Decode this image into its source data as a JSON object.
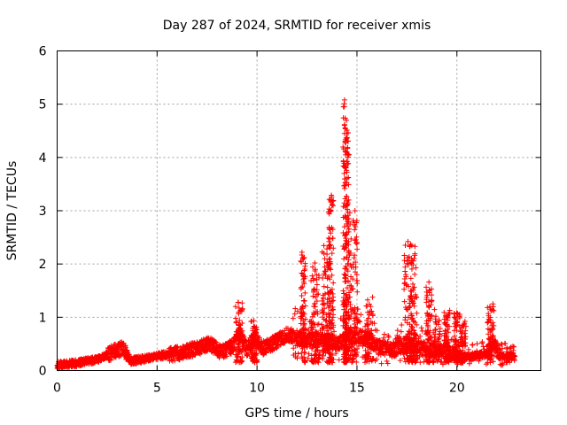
{
  "chart_data": {
    "type": "scatter",
    "title": "Day 287 of 2024, SRMTID for receiver xmis",
    "xlabel": "GPS time / hours",
    "ylabel": "SRMTID / TECUs",
    "xlim": [
      0,
      24.2
    ],
    "ylim": [
      0,
      6
    ],
    "xticks": [
      0,
      5,
      10,
      15,
      20
    ],
    "yticks": [
      0,
      1,
      2,
      3,
      4,
      5,
      6
    ],
    "grid": true,
    "marker": "+",
    "series_color": "#ff0000",
    "x_end": 22.9,
    "baseline": [
      [
        0,
        0.1
      ],
      [
        1,
        0.14
      ],
      [
        2,
        0.2
      ],
      [
        2.8,
        0.35
      ],
      [
        3.3,
        0.42
      ],
      [
        3.7,
        0.18
      ],
      [
        4.4,
        0.22
      ],
      [
        5.2,
        0.28
      ],
      [
        6.2,
        0.33
      ],
      [
        7.0,
        0.42
      ],
      [
        7.6,
        0.5
      ],
      [
        8.2,
        0.35
      ],
      [
        8.8,
        0.45
      ],
      [
        9.1,
        0.75
      ],
      [
        9.5,
        0.4
      ],
      [
        9.9,
        0.62
      ],
      [
        10.3,
        0.42
      ],
      [
        11.0,
        0.55
      ],
      [
        11.5,
        0.68
      ],
      [
        12.0,
        0.62
      ],
      [
        12.4,
        0.55
      ],
      [
        13.0,
        0.6
      ],
      [
        13.6,
        0.55
      ],
      [
        14.0,
        0.5
      ],
      [
        14.5,
        0.6
      ],
      [
        15.0,
        0.65
      ],
      [
        15.5,
        0.6
      ],
      [
        16.0,
        0.45
      ],
      [
        16.8,
        0.38
      ],
      [
        17.5,
        0.5
      ],
      [
        18.0,
        0.45
      ],
      [
        18.5,
        0.4
      ],
      [
        19.0,
        0.38
      ],
      [
        19.5,
        0.35
      ],
      [
        20.0,
        0.28
      ],
      [
        20.5,
        0.25
      ],
      [
        21.0,
        0.27
      ],
      [
        21.5,
        0.3
      ],
      [
        21.8,
        0.55
      ],
      [
        22.2,
        0.28
      ],
      [
        22.9,
        0.25
      ]
    ],
    "bursts": [
      {
        "x": 9.1,
        "w": 0.18,
        "max": 1.28
      },
      {
        "x": 9.85,
        "w": 0.15,
        "max": 0.95
      },
      {
        "x": 12.3,
        "w": 0.12,
        "max": 2.22
      },
      {
        "x": 12.9,
        "w": 0.2,
        "max": 2.05
      },
      {
        "x": 13.45,
        "w": 0.2,
        "max": 2.55
      },
      {
        "x": 13.7,
        "w": 0.12,
        "max": 3.28
      },
      {
        "x": 14.4,
        "w": 0.1,
        "max": 5.07
      },
      {
        "x": 14.5,
        "w": 0.1,
        "max": 4.52
      },
      {
        "x": 14.8,
        "w": 0.22,
        "max": 3.0
      },
      {
        "x": 15.6,
        "w": 0.2,
        "max": 1.4
      },
      {
        "x": 17.55,
        "w": 0.2,
        "max": 2.4
      },
      {
        "x": 17.85,
        "w": 0.15,
        "max": 2.35
      },
      {
        "x": 18.6,
        "w": 0.15,
        "max": 1.62
      },
      {
        "x": 19.0,
        "w": 0.2,
        "max": 1.15
      },
      {
        "x": 19.5,
        "w": 0.15,
        "max": 1.15
      },
      {
        "x": 20.0,
        "w": 0.15,
        "max": 1.1
      },
      {
        "x": 20.3,
        "w": 0.15,
        "max": 0.95
      },
      {
        "x": 21.7,
        "w": 0.18,
        "max": 1.25
      }
    ],
    "spikes": [
      {
        "x": 14.38,
        "y": 5.08
      },
      {
        "x": 14.42,
        "y": 4.54
      },
      {
        "x": 14.45,
        "y": 3.81
      },
      {
        "x": 13.72,
        "y": 3.29
      },
      {
        "x": 13.75,
        "y": 3.1
      },
      {
        "x": 14.4,
        "y": 2.9
      },
      {
        "x": 14.9,
        "y": 3.0
      },
      {
        "x": 14.85,
        "y": 2.78
      },
      {
        "x": 12.25,
        "y": 2.22
      },
      {
        "x": 17.55,
        "y": 2.42
      },
      {
        "x": 17.9,
        "y": 2.33
      },
      {
        "x": 18.6,
        "y": 1.66
      },
      {
        "x": 13.68,
        "y": 2.58
      },
      {
        "x": 13.78,
        "y": 2.48
      },
      {
        "x": 14.95,
        "y": 2.4
      },
      {
        "x": 21.8,
        "y": 1.25
      },
      {
        "x": 21.65,
        "y": 1.2
      },
      {
        "x": 9.05,
        "y": 1.28
      }
    ]
  }
}
